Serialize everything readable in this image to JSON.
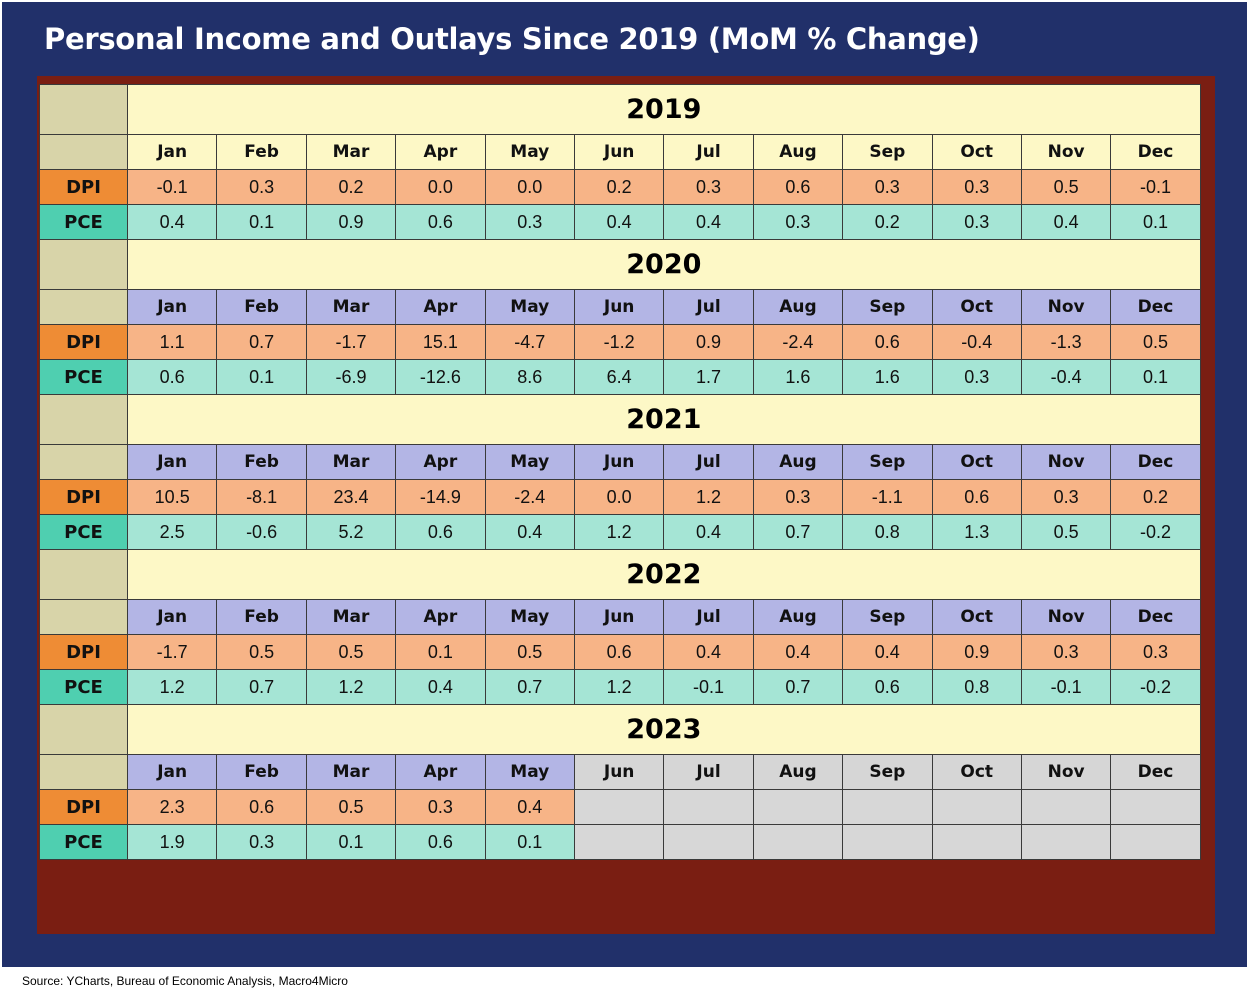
{
  "title": "Personal Income and Outlays Since 2019 (MoM % Change)",
  "source": "Source: YCharts, Bureau of Economic Analysis, Macro4Micro",
  "row_labels": {
    "dpi": "DPI",
    "pce": "PCE"
  },
  "colors": {
    "background": "#21306a",
    "year_header": "#fdf8c6",
    "month_header_2019": "#fdf8c6",
    "month_header": "#b3b5e5",
    "dpi_label": "#ee8c35",
    "dpi_cell": "#f7b487",
    "pce_label": "#4fcfb0",
    "pce_cell": "#a5e5d5",
    "no_data": "#d7d7d7"
  },
  "chart_data": {
    "type": "table",
    "title": "Personal Income and Outlays Since 2019 (MoM % Change)",
    "months": [
      "Jan",
      "Feb",
      "Mar",
      "Apr",
      "May",
      "Jun",
      "Jul",
      "Aug",
      "Sep",
      "Oct",
      "Nov",
      "Dec"
    ],
    "series_names": [
      "DPI",
      "PCE"
    ],
    "years": [
      {
        "year": "2019",
        "dpi": [
          "-0.1",
          "0.3",
          "0.2",
          "0.0",
          "0.0",
          "0.2",
          "0.3",
          "0.6",
          "0.3",
          "0.3",
          "0.5",
          "-0.1"
        ],
        "pce": [
          "0.4",
          "0.1",
          "0.9",
          "0.6",
          "0.3",
          "0.4",
          "0.4",
          "0.3",
          "0.2",
          "0.3",
          "0.4",
          "0.1"
        ]
      },
      {
        "year": "2020",
        "dpi": [
          "1.1",
          "0.7",
          "-1.7",
          "15.1",
          "-4.7",
          "-1.2",
          "0.9",
          "-2.4",
          "0.6",
          "-0.4",
          "-1.3",
          "0.5"
        ],
        "pce": [
          "0.6",
          "0.1",
          "-6.9",
          "-12.6",
          "8.6",
          "6.4",
          "1.7",
          "1.6",
          "1.6",
          "0.3",
          "-0.4",
          "0.1"
        ]
      },
      {
        "year": "2021",
        "dpi": [
          "10.5",
          "-8.1",
          "23.4",
          "-14.9",
          "-2.4",
          "0.0",
          "1.2",
          "0.3",
          "-1.1",
          "0.6",
          "0.3",
          "0.2"
        ],
        "pce": [
          "2.5",
          "-0.6",
          "5.2",
          "0.6",
          "0.4",
          "1.2",
          "0.4",
          "0.7",
          "0.8",
          "1.3",
          "0.5",
          "-0.2"
        ]
      },
      {
        "year": "2022",
        "dpi": [
          "-1.7",
          "0.5",
          "0.5",
          "0.1",
          "0.5",
          "0.6",
          "0.4",
          "0.4",
          "0.4",
          "0.9",
          "0.3",
          "0.3"
        ],
        "pce": [
          "1.2",
          "0.7",
          "1.2",
          "0.4",
          "0.7",
          "1.2",
          "-0.1",
          "0.7",
          "0.6",
          "0.8",
          "-0.1",
          "-0.2"
        ]
      },
      {
        "year": "2023",
        "dpi": [
          "2.3",
          "0.6",
          "0.5",
          "0.3",
          "0.4",
          "",
          "",
          "",
          "",
          "",
          "",
          ""
        ],
        "pce": [
          "1.9",
          "0.3",
          "0.1",
          "0.6",
          "0.1",
          "",
          "",
          "",
          "",
          "",
          "",
          ""
        ]
      }
    ]
  }
}
